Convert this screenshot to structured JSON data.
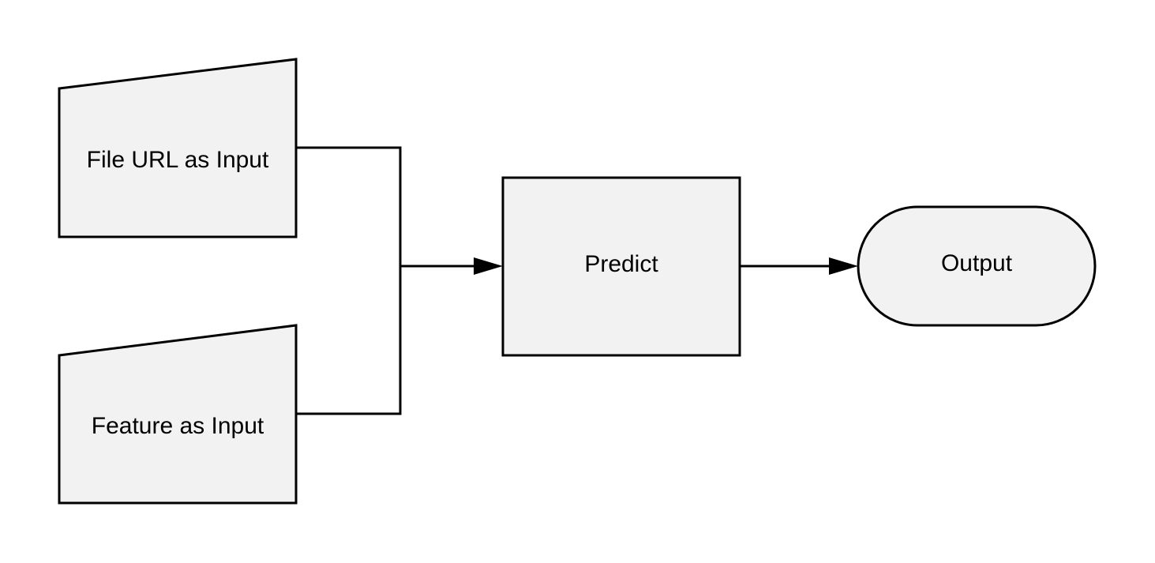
{
  "nodes": {
    "file_url_input": {
      "label": "File URL as Input",
      "shape": "manual-input"
    },
    "feature_input": {
      "label": "Feature as Input",
      "shape": "manual-input"
    },
    "predict": {
      "label": "Predict",
      "shape": "process"
    },
    "output": {
      "label": "Output",
      "shape": "terminator"
    }
  },
  "edges": [
    {
      "from": "file_url_input",
      "to": "predict"
    },
    {
      "from": "feature_input",
      "to": "predict"
    },
    {
      "from": "predict",
      "to": "output"
    }
  ],
  "colors": {
    "shape_fill": "#f2f2f2",
    "stroke": "#000000",
    "text": "#000000",
    "background": "#ffffff"
  }
}
